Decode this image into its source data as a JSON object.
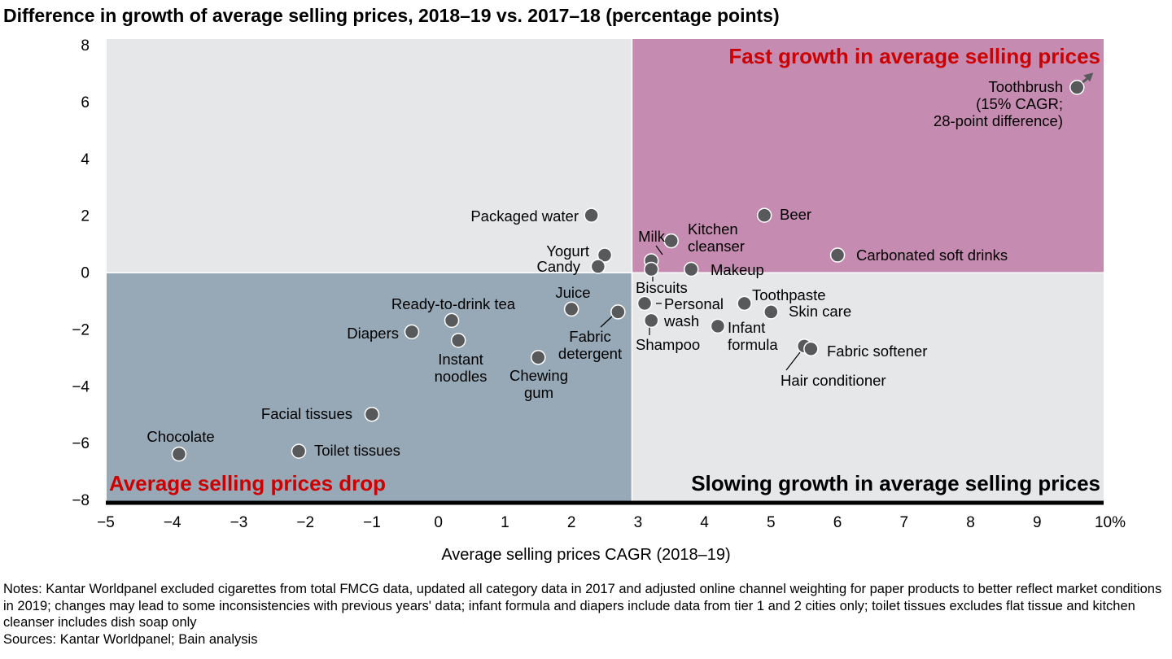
{
  "chart_data": {
    "type": "scatter",
    "title": "Difference in growth of average selling prices, 2018–19 vs. 2017–18 (percentage points)",
    "xlabel": "Average selling prices CAGR (2018–19)",
    "ylabel": "",
    "xlim": [
      -5,
      10
    ],
    "ylim": [
      -8,
      8
    ],
    "xticks": [
      "−5",
      "−4",
      "−3",
      "−2",
      "−1",
      "0",
      "1",
      "2",
      "3",
      "4",
      "5",
      "6",
      "7",
      "8",
      "9",
      "10%"
    ],
    "yticks": [
      "8",
      "6",
      "4",
      "2",
      "0",
      "−2",
      "−4",
      "−6",
      "−8"
    ],
    "grid": false,
    "quadrant_split": {
      "x": 2.9,
      "y": 0
    },
    "quadrants": {
      "top_right": {
        "label": "Fast growth in average selling prices",
        "color": "#c68bb0",
        "label_color": "#cc0000"
      },
      "bottom_left": {
        "label": "Average selling prices drop",
        "color": "#97a9b7",
        "label_color": "#cc0000"
      },
      "bottom_right": {
        "label": "Slowing growth in average selling prices",
        "color": "#e6e7e9",
        "label_color": "#000000"
      },
      "top_left": {
        "label": "",
        "color": "#e6e7e9"
      }
    },
    "marker_color": "#58595b",
    "points": [
      {
        "label": "Toothbrush (15% CAGR; 28-point difference)",
        "lines": [
          "Toothbrush",
          "(15% CAGR;",
          "28-point difference)"
        ],
        "x": 9.6,
        "y": 6.5,
        "off_scale": true
      },
      {
        "label": "Beer",
        "lines": [
          "Beer"
        ],
        "x": 4.9,
        "y": 2.0
      },
      {
        "label": "Carbonated soft drinks",
        "lines": [
          "Carbonated soft drinks"
        ],
        "x": 6.0,
        "y": 0.6
      },
      {
        "label": "Kitchen cleanser",
        "lines": [
          "Kitchen",
          "cleanser"
        ],
        "x": 3.5,
        "y": 1.1
      },
      {
        "label": "Milk",
        "lines": [
          "Milk"
        ],
        "x": 3.2,
        "y": 0.4
      },
      {
        "label": "Biscuits",
        "lines": [
          "Biscuits"
        ],
        "x": 3.2,
        "y": 0.1
      },
      {
        "label": "Makeup",
        "lines": [
          "Makeup"
        ],
        "x": 3.8,
        "y": 0.1
      },
      {
        "label": "Packaged water",
        "lines": [
          "Packaged water"
        ],
        "x": 2.3,
        "y": 2.0
      },
      {
        "label": "Yogurt",
        "lines": [
          "Yogurt"
        ],
        "x": 2.5,
        "y": 0.6
      },
      {
        "label": "Candy",
        "lines": [
          "Candy"
        ],
        "x": 2.4,
        "y": 0.2
      },
      {
        "label": "Juice",
        "lines": [
          "Juice"
        ],
        "x": 2.0,
        "y": -1.3
      },
      {
        "label": "Fabric detergent",
        "lines": [
          "Fabric",
          "detergent"
        ],
        "x": 2.7,
        "y": -1.4
      },
      {
        "label": "Ready-to-drink tea",
        "lines": [
          "Ready-to-drink tea"
        ],
        "x": 0.2,
        "y": -1.7
      },
      {
        "label": "Diapers",
        "lines": [
          "Diapers"
        ],
        "x": -0.4,
        "y": -2.1
      },
      {
        "label": "Instant noodles",
        "lines": [
          "Instant",
          "noodles"
        ],
        "x": 0.3,
        "y": -2.4
      },
      {
        "label": "Chewing gum",
        "lines": [
          "Chewing",
          "gum"
        ],
        "x": 1.5,
        "y": -3.0
      },
      {
        "label": "Facial tissues",
        "lines": [
          "Facial tissues"
        ],
        "x": -1.0,
        "y": -5.0
      },
      {
        "label": "Chocolate",
        "lines": [
          "Chocolate"
        ],
        "x": -3.9,
        "y": -6.4
      },
      {
        "label": "Toilet tissues",
        "lines": [
          "Toilet tissues"
        ],
        "x": -2.1,
        "y": -6.3
      },
      {
        "label": "Personal wash",
        "lines": [
          "Personal",
          "wash"
        ],
        "x": 3.1,
        "y": -1.1
      },
      {
        "label": "Shampoo",
        "lines": [
          "Shampoo"
        ],
        "x": 3.2,
        "y": -1.7
      },
      {
        "label": "Toothpaste",
        "lines": [
          "Toothpaste"
        ],
        "x": 4.6,
        "y": -1.1
      },
      {
        "label": "Skin care",
        "lines": [
          "Skin care"
        ],
        "x": 5.0,
        "y": -1.4
      },
      {
        "label": "Infant formula",
        "lines": [
          "Infant",
          "formula"
        ],
        "x": 4.2,
        "y": -1.9
      },
      {
        "label": "Hair conditioner",
        "lines": [
          "Hair conditioner"
        ],
        "x": 5.5,
        "y": -2.6
      },
      {
        "label": "Fabric softener",
        "lines": [
          "Fabric softener"
        ],
        "x": 5.6,
        "y": -2.7
      }
    ]
  },
  "notes": "Notes: Kantar Worldpanel excluded cigarettes from total FMCG data, updated all category data in 2017 and adjusted online channel weighting for paper products to better reflect market conditions in 2019; changes may lead to some inconsistencies with previous years' data; infant formula and diapers include data from tier 1 and 2 cities only; toilet tissues excludes flat tissue and kitchen cleanser includes dish soap only",
  "sources": "Sources: Kantar Worldpanel; Bain analysis"
}
